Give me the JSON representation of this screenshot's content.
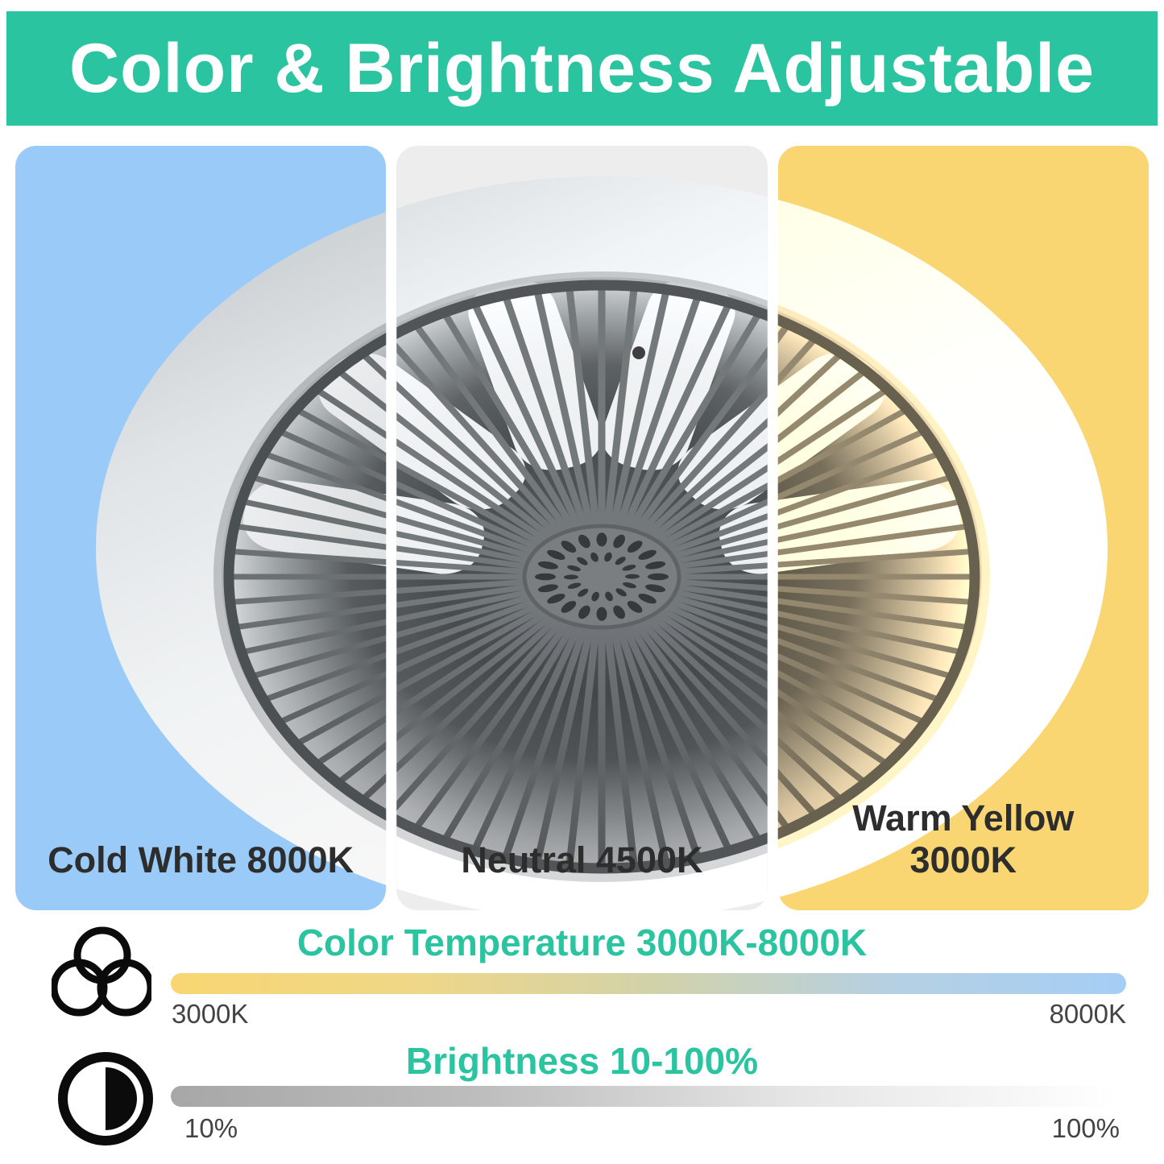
{
  "accent": "#2BC4A1",
  "banner": {
    "title": "Color & Brightness Adjustable",
    "bg": "#2BC4A1",
    "text_color": "#FFFFFF"
  },
  "panels": [
    {
      "label": "Cold White 8000K",
      "bg": "#9ACBF8"
    },
    {
      "label": "Neutral 4500K",
      "bg": "#EDEDED"
    },
    {
      "label": "Warm Yellow 3000K",
      "bg": "#F9D672"
    }
  ],
  "image": {
    "name": "ceiling-fan-light-photo"
  },
  "color_temperature": {
    "title": "Color Temperature 3000K-8000K",
    "min_label": "3000K",
    "max_label": "8000K",
    "icon": "three-overlapping-circles-icon",
    "bar_stops": [
      "#F8D672",
      "#EFD787",
      "#D2D2A8",
      "#B6D0E2",
      "#A5CEF5"
    ]
  },
  "brightness": {
    "title": "Brightness 10-100%",
    "min_label": "10%",
    "max_label": "100%",
    "icon": "half-filled-circle-icon",
    "bar_stops": [
      "#A7A7A7",
      "#BEBEBE",
      "#E6E6E6",
      "#FFFFFF"
    ]
  }
}
